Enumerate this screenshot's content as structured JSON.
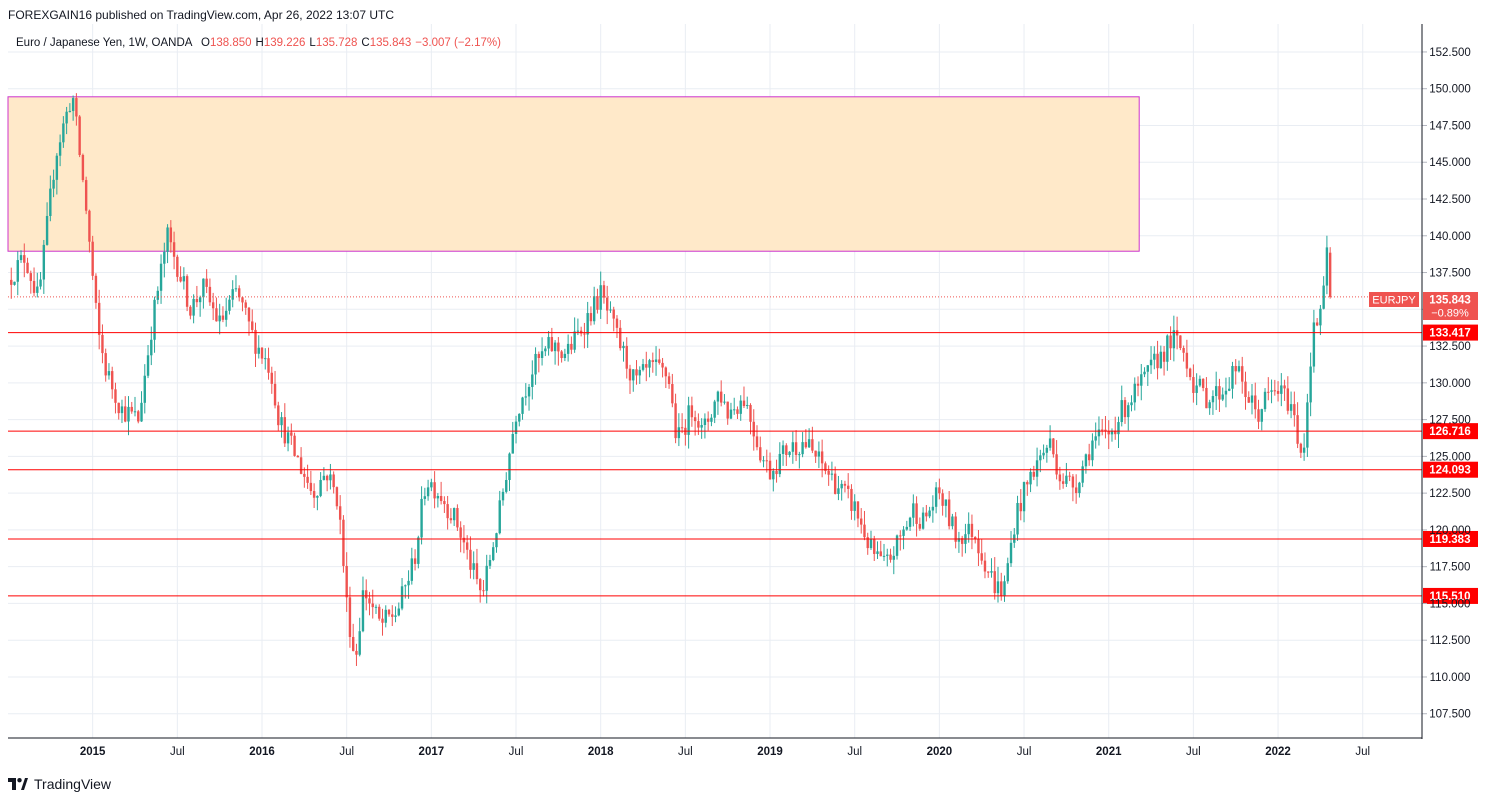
{
  "header": {
    "publisher_line": "FOREXGAIN16 published on TradingView.com, Apr 26, 2022 13:07 UTC"
  },
  "footer": {
    "brand": "TradingView"
  },
  "icons": {
    "logo": "tradingview-logo-icon"
  },
  "colors": {
    "bull": "#26a69a",
    "bear": "#ef5350",
    "hline": "#ff0000",
    "zone_fill": "#ffe9c9",
    "zone_border": "#cc33cc",
    "grid": "#e9edf3",
    "price_tag": "#ef5350"
  },
  "chart_data": {
    "type": "candlestick",
    "title": "Euro / Japanese Yen, 1W, OANDA",
    "ohlc": {
      "o_label": "O",
      "o": "138.850",
      "h_label": "H",
      "h": "139.226",
      "l_label": "L",
      "l": "135.728",
      "c_label": "C",
      "c": "135.843",
      "change": "−3.007 (−2.17%)"
    },
    "symbol": "EURJPY",
    "last_price": "135.843",
    "last_change_pct": "−0.89%",
    "y_range": [
      105.85,
      154.4
    ],
    "y_ticks": [
      "152.500",
      "150.000",
      "147.500",
      "145.000",
      "142.500",
      "140.000",
      "137.500",
      "135.000",
      "132.500",
      "130.000",
      "127.500",
      "125.000",
      "122.500",
      "120.000",
      "117.500",
      "115.000",
      "112.500",
      "110.000",
      "107.500"
    ],
    "x_range": [
      2014.5,
      2022.85
    ],
    "x_ticks": [
      {
        "label": "2015",
        "t": 2015.0,
        "bold": true
      },
      {
        "label": "Jul",
        "t": 2015.5,
        "bold": false
      },
      {
        "label": "2016",
        "t": 2016.0,
        "bold": true
      },
      {
        "label": "Jul",
        "t": 2016.5,
        "bold": false
      },
      {
        "label": "2017",
        "t": 2017.0,
        "bold": true
      },
      {
        "label": "Jul",
        "t": 2017.5,
        "bold": false
      },
      {
        "label": "2018",
        "t": 2018.0,
        "bold": true
      },
      {
        "label": "Jul",
        "t": 2018.5,
        "bold": false
      },
      {
        "label": "2019",
        "t": 2019.0,
        "bold": true
      },
      {
        "label": "Jul",
        "t": 2019.5,
        "bold": false
      },
      {
        "label": "2020",
        "t": 2020.0,
        "bold": true
      },
      {
        "label": "Jul",
        "t": 2020.5,
        "bold": false
      },
      {
        "label": "2021",
        "t": 2021.0,
        "bold": true
      },
      {
        "label": "Jul",
        "t": 2021.5,
        "bold": false
      },
      {
        "label": "2022",
        "t": 2022.0,
        "bold": true
      },
      {
        "label": "Jul",
        "t": 2022.5,
        "bold": false
      }
    ],
    "horizontal_levels": [
      "133.417",
      "126.716",
      "124.093",
      "119.383",
      "115.510"
    ],
    "zone": {
      "t_start": 2014.5,
      "t_end": 2021.18,
      "top": 149.45,
      "bottom": 138.95
    },
    "anchors": [
      [
        2014.5,
        137.0
      ],
      [
        2014.6,
        138.6
      ],
      [
        2014.68,
        135.6
      ],
      [
        2014.78,
        145.5
      ],
      [
        2014.88,
        149.7
      ],
      [
        2014.96,
        142.0
      ],
      [
        2015.03,
        133.5
      ],
      [
        2015.08,
        130.8
      ],
      [
        2015.17,
        128.2
      ],
      [
        2015.27,
        127.5
      ],
      [
        2015.35,
        134.0
      ],
      [
        2015.44,
        140.0
      ],
      [
        2015.5,
        138.0
      ],
      [
        2015.58,
        135.0
      ],
      [
        2015.65,
        136.5
      ],
      [
        2015.75,
        134.0
      ],
      [
        2015.85,
        136.2
      ],
      [
        2015.95,
        133.0
      ],
      [
        2016.05,
        131.0
      ],
      [
        2016.1,
        127.5
      ],
      [
        2016.2,
        125.0
      ],
      [
        2016.3,
        122.5
      ],
      [
        2016.38,
        124.0
      ],
      [
        2016.45,
        122.0
      ],
      [
        2016.5,
        115.0
      ],
      [
        2016.55,
        111.0
      ],
      [
        2016.6,
        116.0
      ],
      [
        2016.7,
        113.5
      ],
      [
        2016.8,
        114.5
      ],
      [
        2016.9,
        118.0
      ],
      [
        2016.97,
        123.5
      ],
      [
        2017.05,
        122.5
      ],
      [
        2017.15,
        120.5
      ],
      [
        2017.25,
        117.0
      ],
      [
        2017.3,
        115.5
      ],
      [
        2017.4,
        121.0
      ],
      [
        2017.5,
        128.0
      ],
      [
        2017.6,
        131.0
      ],
      [
        2017.7,
        132.5
      ],
      [
        2017.8,
        132.0
      ],
      [
        2017.9,
        134.0
      ],
      [
        2018.0,
        136.0
      ],
      [
        2018.1,
        133.0
      ],
      [
        2018.2,
        130.0
      ],
      [
        2018.3,
        131.0
      ],
      [
        2018.4,
        130.5
      ],
      [
        2018.45,
        126.0
      ],
      [
        2018.55,
        128.5
      ],
      [
        2018.6,
        126.5
      ],
      [
        2018.7,
        129.5
      ],
      [
        2018.75,
        128.0
      ],
      [
        2018.85,
        129.0
      ],
      [
        2018.95,
        125.0
      ],
      [
        2019.0,
        124.0
      ],
      [
        2019.1,
        125.5
      ],
      [
        2019.2,
        126.0
      ],
      [
        2019.3,
        124.5
      ],
      [
        2019.4,
        123.0
      ],
      [
        2019.5,
        121.5
      ],
      [
        2019.6,
        118.5
      ],
      [
        2019.68,
        117.5
      ],
      [
        2019.75,
        119.0
      ],
      [
        2019.85,
        121.5
      ],
      [
        2019.9,
        120.5
      ],
      [
        2020.0,
        122.5
      ],
      [
        2020.1,
        119.5
      ],
      [
        2020.2,
        120.0
      ],
      [
        2020.28,
        117.5
      ],
      [
        2020.33,
        116.2
      ],
      [
        2020.38,
        115.8
      ],
      [
        2020.45,
        121.0
      ],
      [
        2020.55,
        124.0
      ],
      [
        2020.65,
        126.0
      ],
      [
        2020.72,
        123.5
      ],
      [
        2020.8,
        123.0
      ],
      [
        2020.9,
        126.0
      ],
      [
        2021.0,
        126.5
      ],
      [
        2021.1,
        128.5
      ],
      [
        2021.2,
        130.0
      ],
      [
        2021.28,
        131.5
      ],
      [
        2021.38,
        133.0
      ],
      [
        2021.45,
        132.0
      ],
      [
        2021.5,
        130.0
      ],
      [
        2021.58,
        129.0
      ],
      [
        2021.68,
        129.5
      ],
      [
        2021.75,
        131.0
      ],
      [
        2021.8,
        129.5
      ],
      [
        2021.88,
        127.8
      ],
      [
        2021.93,
        129.0
      ],
      [
        2022.0,
        129.5
      ],
      [
        2022.08,
        128.5
      ],
      [
        2022.12,
        126.0
      ],
      [
        2022.15,
        125.3
      ],
      [
        2022.2,
        133.0
      ],
      [
        2022.24,
        134.5
      ],
      [
        2022.27,
        136.0
      ],
      [
        2022.29,
        138.85
      ],
      [
        2022.31,
        135.843
      ]
    ]
  }
}
